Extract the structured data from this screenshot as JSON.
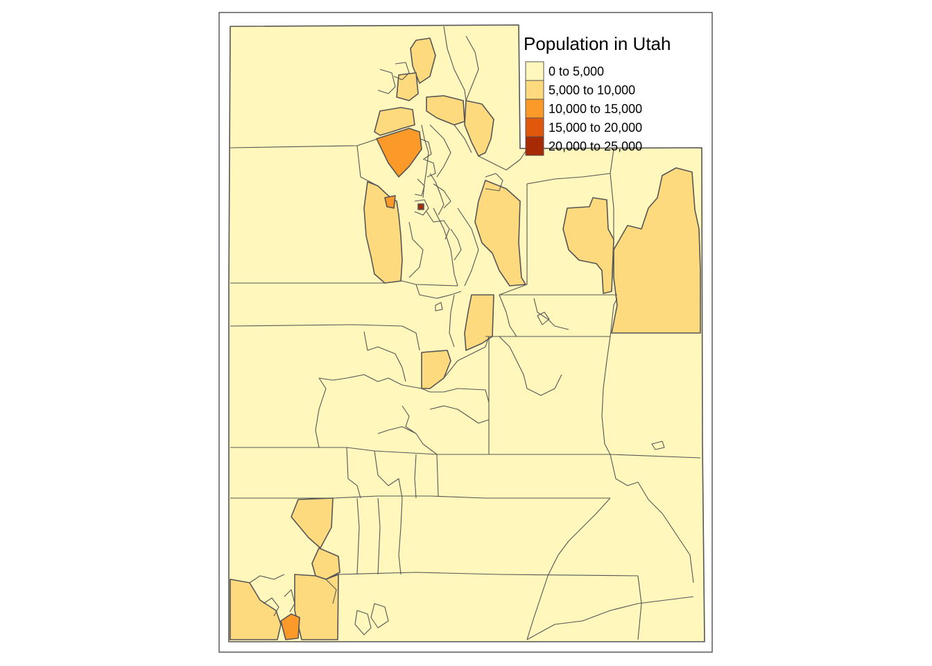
{
  "legend": {
    "title": "Population in Utah",
    "items": [
      {
        "label": "0 to 5,000",
        "color": "#FFF7BC"
      },
      {
        "label": "5,000 to 10,000",
        "color": "#FEDA7F"
      },
      {
        "label": "10,000 to 15,000",
        "color": "#FB9A29"
      },
      {
        "label": "15,000 to 20,000",
        "color": "#E1580D"
      },
      {
        "label": "20,000 to 25,000",
        "color": "#A62A04"
      }
    ]
  },
  "colors": {
    "border": "#555555",
    "frame": "#333333",
    "background": "#FFFFFF"
  }
}
